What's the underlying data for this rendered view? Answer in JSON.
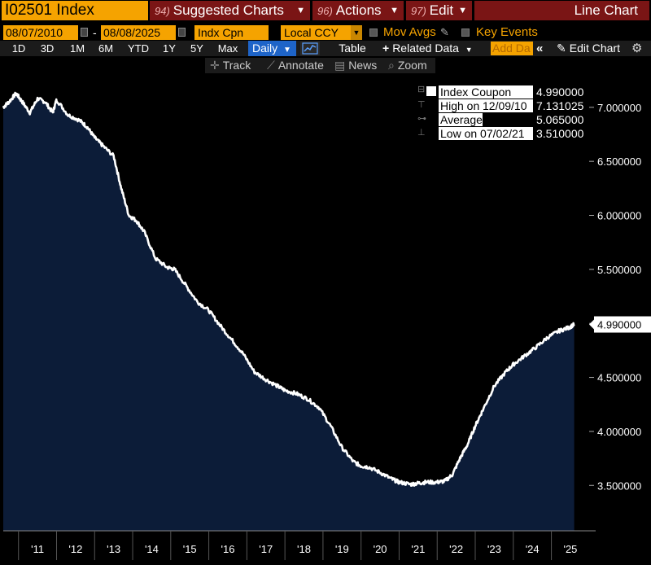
{
  "header": {
    "ticker": "I02501 Index",
    "menus": [
      {
        "num": "94)",
        "label": "Suggested Charts"
      },
      {
        "num": "96)",
        "label": "Actions"
      },
      {
        "num": "97)",
        "label": "Edit"
      }
    ],
    "chart_type": "Line Chart"
  },
  "controls": {
    "start_date": "08/07/2010",
    "end_date": "08/08/2025",
    "field": "Indx Cpn",
    "currency": "Local CCY",
    "mov_avgs": "Mov Avgs",
    "key_events": "Key Events"
  },
  "periods": [
    "1D",
    "3D",
    "1M",
    "6M",
    "YTD",
    "1Y",
    "5Y",
    "Max"
  ],
  "frequency": "Daily",
  "toolbar": {
    "table": "Table",
    "related": "Related Data",
    "add_data": "Add Da",
    "edit_chart": "Edit Chart"
  },
  "tools": [
    "Track",
    "Annotate",
    "News",
    "Zoom"
  ],
  "legend": {
    "series_label": "Index Coupon",
    "series_value": "4.990000",
    "high_label": "High on",
    "high_date": "12/09/10",
    "high_value": "7.131025",
    "avg_label": "Average",
    "avg_value": "5.065000",
    "low_label": "Low on 07/02/21",
    "low_value": "3.510000"
  },
  "colors": {
    "accent": "#f5a300",
    "menu_bg": "#7a1515",
    "area_fill": "#0c1c38",
    "line": "#ffffff"
  },
  "chart_data": {
    "type": "area",
    "title": "",
    "xlabel": "",
    "ylabel": "",
    "y_ticks": [
      "7.000000",
      "6.500000",
      "6.000000",
      "5.500000",
      "5.000000",
      "4.500000",
      "4.000000",
      "3.500000"
    ],
    "x_ticks": [
      "'11",
      "'12",
      "'13",
      "'14",
      "'15",
      "'16",
      "'17",
      "'18",
      "'19",
      "'20",
      "'21",
      "'22",
      "'23",
      "'24",
      "'25"
    ],
    "last_value_label": "4.990000",
    "ylim": [
      3.08,
      7.3
    ],
    "xlim": [
      2010.6,
      2025.95
    ],
    "series": [
      {
        "x": [
          2010.6,
          2010.75,
          2010.94,
          2011.1,
          2011.3,
          2011.5,
          2011.7,
          2011.9,
          2012.0,
          2012.3,
          2012.6,
          2012.8,
          2013.0,
          2013.2,
          2013.5,
          2013.7,
          2013.9,
          2014.1,
          2014.3,
          2014.6,
          2014.9,
          2015.1,
          2015.4,
          2015.7,
          2016.0,
          2016.3,
          2016.6,
          2016.9,
          2017.2,
          2017.5,
          2017.8,
          2018.0,
          2018.3,
          2018.6,
          2018.9,
          2019.2,
          2019.5,
          2019.8,
          2020.0,
          2020.2,
          2020.5,
          2020.8,
          2021.0,
          2021.3,
          2021.5,
          2021.7,
          2022.0,
          2022.2,
          2022.4,
          2022.6,
          2022.8,
          2023.0,
          2023.2,
          2023.5,
          2023.8,
          2024.0,
          2024.3,
          2024.6,
          2024.9,
          2025.2,
          2025.45,
          2025.6
        ],
        "values": [
          7.0,
          7.05,
          7.13,
          7.05,
          6.95,
          7.08,
          7.05,
          6.95,
          7.07,
          6.93,
          6.88,
          6.82,
          6.72,
          6.65,
          6.55,
          6.25,
          6.0,
          5.95,
          5.85,
          5.6,
          5.52,
          5.5,
          5.35,
          5.2,
          5.12,
          4.98,
          4.85,
          4.72,
          4.55,
          4.48,
          4.42,
          4.38,
          4.35,
          4.3,
          4.22,
          4.05,
          3.85,
          3.72,
          3.68,
          3.67,
          3.62,
          3.56,
          3.53,
          3.51,
          3.52,
          3.53,
          3.53,
          3.54,
          3.6,
          3.75,
          3.88,
          4.05,
          4.2,
          4.42,
          4.55,
          4.62,
          4.7,
          4.78,
          4.87,
          4.93,
          4.96,
          4.99
        ]
      }
    ]
  }
}
